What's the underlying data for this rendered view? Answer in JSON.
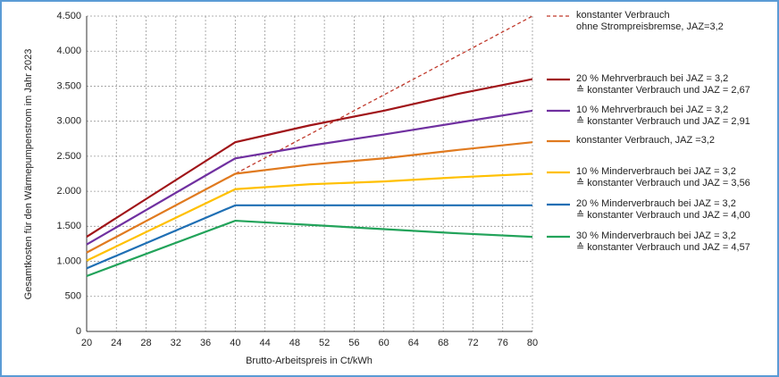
{
  "chart_data": {
    "type": "line",
    "xlabel": "Brutto-Arbeitspreis in Ct/kWh",
    "ylabel": "Gesamtkosten für den Wärmepumpenstrom im Jahr 2023",
    "x": [
      20,
      40,
      50,
      60,
      70,
      80
    ],
    "xlim": [
      20,
      80
    ],
    "xticks": [
      20,
      24,
      28,
      32,
      36,
      40,
      44,
      48,
      52,
      56,
      60,
      64,
      68,
      72,
      76,
      80
    ],
    "ylim": [
      0,
      4500
    ],
    "yticks": [
      0,
      500,
      {
        "value": 1000,
        "label": "1.000"
      },
      {
        "value": 1500,
        "label": "1.500"
      },
      {
        "value": 2000,
        "label": "2.000"
      },
      {
        "value": 2500,
        "label": "2.500"
      },
      {
        "value": 3000,
        "label": "3.000"
      },
      {
        "value": 3500,
        "label": "3.500"
      },
      {
        "value": 4000,
        "label": "4.000"
      },
      {
        "value": 4500,
        "label": "4.500"
      }
    ],
    "grid": true,
    "series": [
      {
        "name": "konstanter Verbrauch\nohne Strompreisbremse, JAZ=3,2",
        "color": "#c0392b",
        "dashed": true,
        "values": [
          1125,
          2250,
          2812,
          3375,
          3937,
          4500
        ]
      },
      {
        "name": "20 % Mehrverbrauch bei JAZ = 3,2\n≙ konstanter Verbrauch und JAZ = 2,67",
        "color": "#a01418",
        "values": [
          1350,
          2700,
          2940,
          3150,
          3390,
          3600
        ]
      },
      {
        "name": "10 % Mehrverbrauch bei JAZ = 3,2\n≙ konstanter Verbrauch und JAZ = 2,91",
        "color": "#7030a0",
        "values": [
          1240,
          2470,
          2650,
          2810,
          2980,
          3150
        ]
      },
      {
        "name": "konstanter Verbrauch, JAZ =3,2",
        "color": "#e07a1f",
        "values": [
          1125,
          2250,
          2380,
          2470,
          2590,
          2700
        ]
      },
      {
        "name": "10 % Minderverbrauch bei JAZ = 3,2\n≙ konstanter Verbrauch und JAZ = 3,56",
        "color": "#ffc000",
        "values": [
          1010,
          2030,
          2100,
          2140,
          2200,
          2250
        ]
      },
      {
        "name": "20 % Minderverbrauch bei JAZ = 3,2\n≙ konstanter Verbrauch und JAZ = 4,00",
        "color": "#1f6fb4",
        "values": [
          900,
          1800,
          1800,
          1800,
          1800,
          1800
        ]
      },
      {
        "name": "30 % Minderverbrauch bei JAZ = 3,2\n≙ konstanter Verbrauch und JAZ = 4,57",
        "color": "#22a35a",
        "values": [
          790,
          1580,
          1520,
          1460,
          1400,
          1350
        ]
      }
    ]
  }
}
